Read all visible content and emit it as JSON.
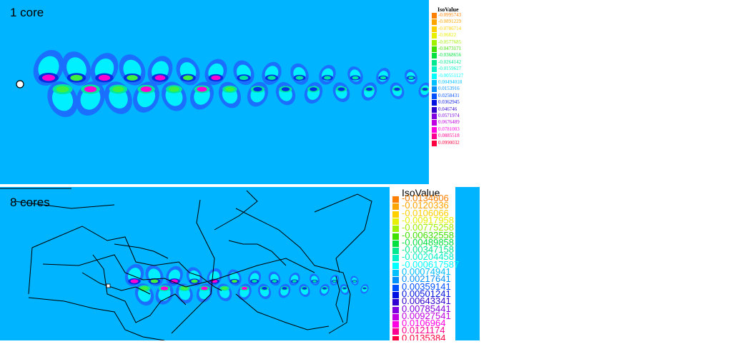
{
  "panel1": {
    "label": "1 core",
    "legend_title": "IsoValue",
    "legend": [
      {
        "value": "-0.0995743",
        "color": "#ff8000"
      },
      {
        "value": "-0.0891229",
        "color": "#ffa500"
      },
      {
        "value": "-0.0786714",
        "color": "#ffd000"
      },
      {
        "value": "-0.06822",
        "color": "#e6f000"
      },
      {
        "value": "-0.0577685",
        "color": "#a0f000"
      },
      {
        "value": "-0.0473171",
        "color": "#40e000"
      },
      {
        "value": "-0.0368656",
        "color": "#00e040"
      },
      {
        "value": "-0.0264142",
        "color": "#00e890"
      },
      {
        "value": "-0.0159627",
        "color": "#00f0c8"
      },
      {
        "value": "-0.00551127",
        "color": "#00ffff"
      },
      {
        "value": "0.00494018",
        "color": "#00c0ff"
      },
      {
        "value": "0.0153916",
        "color": "#0090ff"
      },
      {
        "value": "0.0258431",
        "color": "#0050ff"
      },
      {
        "value": "0.0362945",
        "color": "#0010e0"
      },
      {
        "value": "0.046746",
        "color": "#3000d0"
      },
      {
        "value": "0.0571974",
        "color": "#8000e0"
      },
      {
        "value": "0.0676489",
        "color": "#c000e0"
      },
      {
        "value": "0.0781003",
        "color": "#ff00e0"
      },
      {
        "value": "0.0885518",
        "color": "#ff0090"
      },
      {
        "value": "0.0990032",
        "color": "#ff0040"
      }
    ]
  },
  "panel2": {
    "label": "8 cores",
    "legend_title": "IsoValue",
    "legend": [
      {
        "value": "-0.0134606",
        "color": "#ff8000"
      },
      {
        "value": "-0.0120336",
        "color": "#ffa500"
      },
      {
        "value": "-0.0106066",
        "color": "#ffd000"
      },
      {
        "value": "-0.00917958",
        "color": "#e6f000"
      },
      {
        "value": "-0.00775258",
        "color": "#a0f000"
      },
      {
        "value": "-0.00632558",
        "color": "#40e000"
      },
      {
        "value": "-0.00489858",
        "color": "#00e040"
      },
      {
        "value": "-0.00347158",
        "color": "#00e890"
      },
      {
        "value": "-0.00204458",
        "color": "#00f0c8"
      },
      {
        "value": "-0.000617587",
        "color": "#00ffff"
      },
      {
        "value": "0.00074941",
        "color": "#00c0ff"
      },
      {
        "value": "0.00217641",
        "color": "#0090ff"
      },
      {
        "value": "0.00359141",
        "color": "#0050ff"
      },
      {
        "value": "0.00501241",
        "color": "#0010e0"
      },
      {
        "value": "0.00643341",
        "color": "#3000d0"
      },
      {
        "value": "0.00785441",
        "color": "#8000e0"
      },
      {
        "value": "0.00927541",
        "color": "#c000e0"
      },
      {
        "value": "0.0106964",
        "color": "#ff00e0"
      },
      {
        "value": "0.0121174",
        "color": "#ff0090"
      },
      {
        "value": "0.0135384",
        "color": "#ff0040"
      }
    ]
  }
}
